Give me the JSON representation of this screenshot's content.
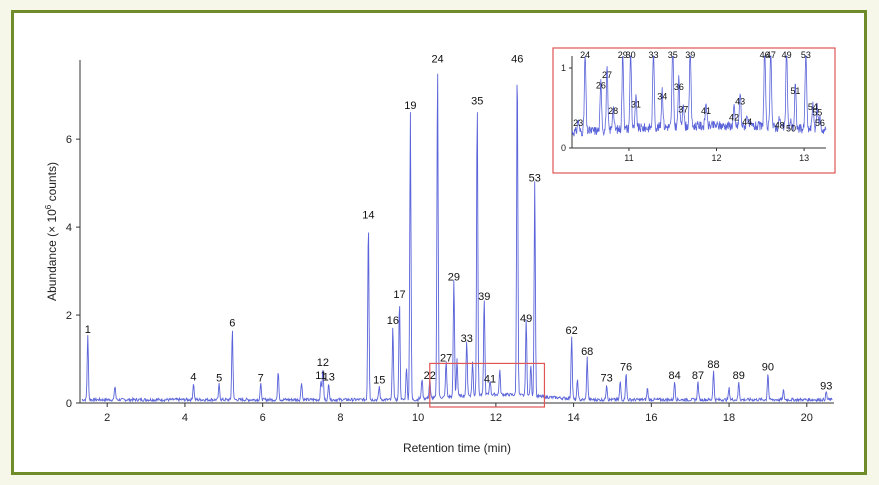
{
  "chart_data": {
    "type": "line",
    "xlabel": "Retention time (min)",
    "ylabel_main": "Abundance (× 10",
    "ylabel_sup": "6",
    "ylabel_rest": " counts)",
    "xlim": [
      1.3,
      20.7
    ],
    "ylim": [
      0,
      7.8
    ],
    "x_ticks": [
      "2",
      "4",
      "6",
      "8",
      "10",
      "12",
      "14",
      "16",
      "18",
      "20"
    ],
    "y_ticks": [
      "0",
      "2",
      "4",
      "6"
    ],
    "line_color": "#5a63d9",
    "highlight_color": "#e05555",
    "zoom_region": {
      "x": [
        10.3,
        13.25
      ],
      "y": [
        0,
        0.9
      ]
    },
    "peaks": [
      {
        "label": "1",
        "x": 1.5,
        "y": 1.5
      },
      {
        "label": "4",
        "x": 4.22,
        "y": 0.42
      },
      {
        "label": "5",
        "x": 4.88,
        "y": 0.4
      },
      {
        "label": "6",
        "x": 5.22,
        "y": 1.65
      },
      {
        "label": "7",
        "x": 5.95,
        "y": 0.4
      },
      {
        "label": "11",
        "x": 7.5,
        "y": 0.45
      },
      {
        "label": "12",
        "x": 7.55,
        "y": 0.75
      },
      {
        "label": "13",
        "x": 7.7,
        "y": 0.42
      },
      {
        "label": "14",
        "x": 8.72,
        "y": 4.1
      },
      {
        "label": "15",
        "x": 9.0,
        "y": 0.35
      },
      {
        "label": "16",
        "x": 9.35,
        "y": 1.7
      },
      {
        "label": "17",
        "x": 9.52,
        "y": 2.3
      },
      {
        "label": "19",
        "x": 9.8,
        "y": 6.6
      },
      {
        "label": "22",
        "x": 10.3,
        "y": 0.45
      },
      {
        "label": "24",
        "x": 10.5,
        "y": 7.65
      },
      {
        "label": "27",
        "x": 10.72,
        "y": 0.85
      },
      {
        "label": "29",
        "x": 10.92,
        "y": 2.7
      },
      {
        "label": "33",
        "x": 11.25,
        "y": 1.3
      },
      {
        "label": "35",
        "x": 11.52,
        "y": 6.7
      },
      {
        "label": "39",
        "x": 11.7,
        "y": 2.25
      },
      {
        "label": "41",
        "x": 11.85,
        "y": 0.38
      },
      {
        "label": "46",
        "x": 12.55,
        "y": 7.65
      },
      {
        "label": "49",
        "x": 12.78,
        "y": 1.75
      },
      {
        "label": "53",
        "x": 13.0,
        "y": 4.95
      },
      {
        "label": "62",
        "x": 13.95,
        "y": 1.48
      },
      {
        "label": "68",
        "x": 14.35,
        "y": 1.0
      },
      {
        "label": "73",
        "x": 14.85,
        "y": 0.4
      },
      {
        "label": "76",
        "x": 15.35,
        "y": 0.65
      },
      {
        "label": "84",
        "x": 16.6,
        "y": 0.45
      },
      {
        "label": "87",
        "x": 17.2,
        "y": 0.45
      },
      {
        "label": "88",
        "x": 17.6,
        "y": 0.7
      },
      {
        "label": "89",
        "x": 18.25,
        "y": 0.45
      },
      {
        "label": "90",
        "x": 19.0,
        "y": 0.65
      },
      {
        "label": "93",
        "x": 20.5,
        "y": 0.22
      }
    ],
    "minor_peaks": [
      {
        "x": 2.2,
        "y": 0.35
      },
      {
        "x": 6.4,
        "y": 0.7
      },
      {
        "x": 7.0,
        "y": 0.45
      },
      {
        "x": 9.7,
        "y": 0.8
      },
      {
        "x": 10.1,
        "y": 0.5
      },
      {
        "x": 11.0,
        "y": 0.9
      },
      {
        "x": 11.4,
        "y": 0.8
      },
      {
        "x": 12.1,
        "y": 0.6
      },
      {
        "x": 12.9,
        "y": 0.75
      },
      {
        "x": 14.1,
        "y": 0.5
      },
      {
        "x": 15.2,
        "y": 0.45
      },
      {
        "x": 15.9,
        "y": 0.3
      },
      {
        "x": 18.0,
        "y": 0.3
      },
      {
        "x": 19.4,
        "y": 0.25
      }
    ],
    "inset": {
      "xlim": [
        10.35,
        13.25
      ],
      "ylim": [
        0,
        1.15
      ],
      "x_ticks": [
        "11",
        "12",
        "13"
      ],
      "y_ticks": [
        "0",
        "1"
      ],
      "peaks": [
        {
          "label": "23",
          "x": 10.42,
          "y": 0.25
        },
        {
          "label": "24",
          "x": 10.5,
          "y": 1.1
        },
        {
          "label": "26",
          "x": 10.68,
          "y": 0.72
        },
        {
          "label": "27",
          "x": 10.75,
          "y": 0.85
        },
        {
          "label": "28",
          "x": 10.82,
          "y": 0.4
        },
        {
          "label": "29",
          "x": 10.93,
          "y": 1.1
        },
        {
          "label": "30",
          "x": 11.02,
          "y": 1.1
        },
        {
          "label": "31",
          "x": 11.08,
          "y": 0.48
        },
        {
          "label": "33",
          "x": 11.28,
          "y": 1.1
        },
        {
          "label": "34",
          "x": 11.38,
          "y": 0.58
        },
        {
          "label": "35",
          "x": 11.5,
          "y": 1.1
        },
        {
          "label": "36",
          "x": 11.57,
          "y": 0.7
        },
        {
          "label": "37",
          "x": 11.62,
          "y": 0.42
        },
        {
          "label": "39",
          "x": 11.7,
          "y": 1.1
        },
        {
          "label": "41",
          "x": 11.88,
          "y": 0.4
        },
        {
          "label": "42",
          "x": 12.2,
          "y": 0.32
        },
        {
          "label": "43",
          "x": 12.27,
          "y": 0.52
        },
        {
          "label": "44",
          "x": 12.35,
          "y": 0.26
        },
        {
          "label": "46",
          "x": 12.55,
          "y": 1.1
        },
        {
          "label": "47",
          "x": 12.62,
          "y": 1.1
        },
        {
          "label": "48",
          "x": 12.72,
          "y": 0.22
        },
        {
          "label": "49",
          "x": 12.8,
          "y": 1.1
        },
        {
          "label": "50",
          "x": 12.85,
          "y": 0.18
        },
        {
          "label": "51",
          "x": 12.9,
          "y": 0.65
        },
        {
          "label": "53",
          "x": 13.02,
          "y": 1.1
        },
        {
          "label": "54",
          "x": 13.1,
          "y": 0.45
        },
        {
          "label": "55",
          "x": 13.15,
          "y": 0.38
        },
        {
          "label": "56",
          "x": 13.18,
          "y": 0.25
        }
      ]
    }
  }
}
